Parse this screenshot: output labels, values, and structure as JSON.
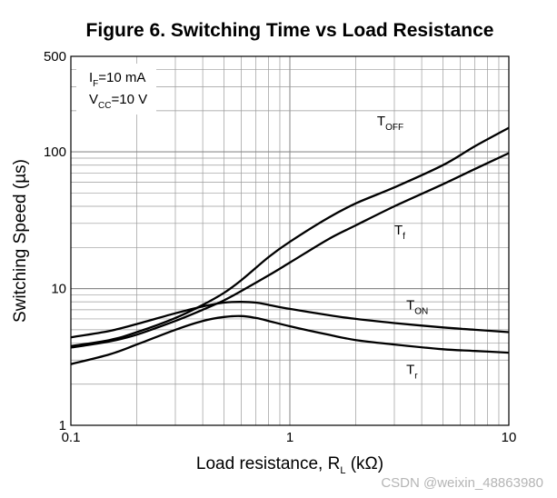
{
  "chart_data": {
    "type": "line",
    "title": "Figure 6. Switching Time vs Load Resistance",
    "xlabel": {
      "main": "Load resistance, R",
      "sub": "L",
      "unit": "(kΩ)"
    },
    "ylabel": "Switching Speed (µs)",
    "x_scale": "log",
    "y_scale": "log",
    "xlim": [
      0.1,
      10
    ],
    "ylim": [
      1,
      500
    ],
    "grid": true,
    "x_ticks": [
      "0.1",
      "1",
      "10"
    ],
    "y_ticks": [
      "1",
      "10",
      "100",
      "500"
    ],
    "conditions": [
      {
        "main": "I",
        "sub": "F",
        "rest": "=10 mA"
      },
      {
        "main": "V",
        "sub": "CC",
        "rest": "=10 V"
      }
    ],
    "series": [
      {
        "name": "TOFF",
        "label": {
          "main": "T",
          "sub": "OFF"
        },
        "x": [
          0.1,
          0.15,
          0.2,
          0.3,
          0.4,
          0.5,
          0.6,
          0.8,
          1,
          1.5,
          2,
          3,
          5,
          7,
          10
        ],
        "y": [
          3.8,
          4.2,
          4.8,
          6.1,
          7.6,
          9.3,
          11.5,
          17,
          22,
          33,
          42,
          55,
          80,
          110,
          150
        ]
      },
      {
        "name": "Tf",
        "label": {
          "main": "T",
          "sub": "f"
        },
        "x": [
          0.1,
          0.15,
          0.2,
          0.3,
          0.4,
          0.5,
          0.6,
          0.8,
          1,
          1.5,
          2,
          3,
          5,
          7,
          10
        ],
        "y": [
          3.7,
          4.1,
          4.6,
          5.8,
          7.0,
          8.2,
          9.6,
          12.5,
          15.5,
          23,
          29,
          40,
          58,
          75,
          98
        ]
      },
      {
        "name": "TON",
        "label": {
          "main": "T",
          "sub": "ON"
        },
        "x": [
          0.1,
          0.15,
          0.2,
          0.3,
          0.4,
          0.5,
          0.6,
          0.7,
          0.8,
          1,
          1.5,
          2,
          3,
          5,
          7,
          10
        ],
        "y": [
          4.4,
          4.9,
          5.5,
          6.6,
          7.4,
          7.9,
          8.0,
          7.9,
          7.6,
          7.1,
          6.4,
          6.0,
          5.6,
          5.2,
          5.0,
          4.8
        ]
      },
      {
        "name": "Tr",
        "label": {
          "main": "T",
          "sub": "r"
        },
        "x": [
          0.1,
          0.15,
          0.2,
          0.3,
          0.4,
          0.5,
          0.6,
          0.7,
          0.8,
          1,
          1.5,
          2,
          3,
          5,
          7,
          10
        ],
        "y": [
          2.8,
          3.3,
          3.9,
          5.0,
          5.8,
          6.2,
          6.3,
          6.1,
          5.8,
          5.3,
          4.6,
          4.2,
          3.9,
          3.6,
          3.5,
          3.4
        ]
      }
    ]
  },
  "watermark": "CSDN @weixin_48863980"
}
